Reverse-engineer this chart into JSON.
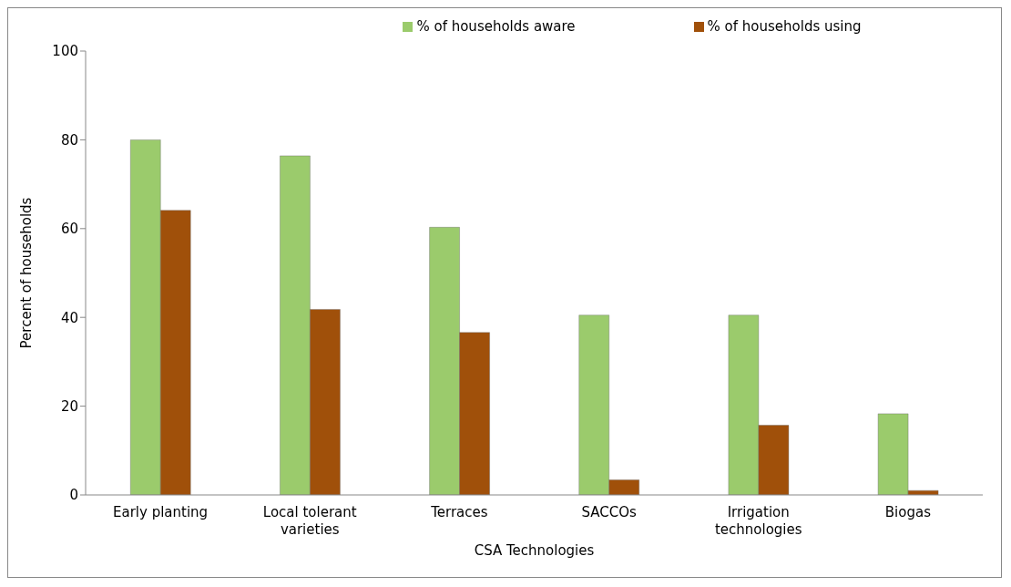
{
  "chart_data": {
    "type": "bar",
    "xlabel": "CSA Technologies",
    "ylabel": "Percent of households",
    "categories": [
      "Early planting",
      "Local tolerant varieties",
      "Terraces",
      "SACCOs",
      "Irrigation technologies",
      "Biogas"
    ],
    "series": [
      {
        "name": "% of households aware",
        "color": "#9bcb6c",
        "values": [
          80,
          76.4,
          60.3,
          40.5,
          40.5,
          18.3
        ]
      },
      {
        "name": "% of households using",
        "color": "#a0500a",
        "values": [
          64.1,
          41.8,
          36.6,
          3.4,
          15.7,
          1
        ]
      }
    ],
    "ylim": [
      0,
      100
    ],
    "yticks": [
      0,
      20,
      40,
      60,
      80,
      100
    ],
    "grid": false,
    "legend": "top"
  }
}
